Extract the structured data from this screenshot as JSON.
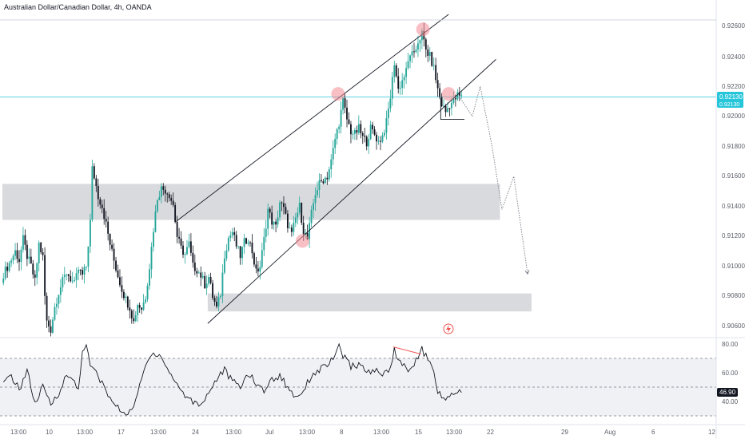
{
  "header": {
    "title": "Australian Dollar/Canadian Dollar, 4h, OANDA"
  },
  "colors": {
    "up": "#26a69a",
    "down": "#131722",
    "price_line": "#26c6da",
    "price_tag": "#26c6da",
    "zone_fill": "#d5d6da",
    "highlight": "#f28b93",
    "rsi_line": "#131722",
    "divergence": "#ef5350",
    "axis_text": "#5d606b"
  },
  "price_axis": {
    "labels": [
      "0.92600",
      "0.92400",
      "0.92200",
      "0.92000",
      "0.91800",
      "0.91600",
      "0.91400",
      "0.91200",
      "0.91000",
      "0.90800",
      "0.90600"
    ],
    "current_price": "0.92130",
    "current_price_sub": "0.92130"
  },
  "rsi_axis": {
    "labels": [
      "80.00",
      "60.00",
      "40.00"
    ],
    "current_value": "46.90"
  },
  "time_axis": {
    "labels": [
      "13:00",
      "10",
      "13:00",
      "17",
      "13:00",
      "24",
      "13:00",
      "Jul",
      "13:00",
      "8",
      "13:00",
      "15",
      "13:00",
      "22",
      "29",
      "Aug",
      "6",
      "12"
    ]
  },
  "icons": {
    "flash": "lightning-icon"
  },
  "chart_data": [
    {
      "type": "candlestick",
      "title": "Australian Dollar/Canadian Dollar, 4h, OANDA",
      "ylim": [
        0.905,
        0.927
      ],
      "y_ticks": [
        0.926,
        0.924,
        0.922,
        0.92,
        0.918,
        0.916,
        0.914,
        0.912,
        0.91,
        0.908,
        0.906
      ],
      "anchors": [
        [
          0,
          0.9095
        ],
        [
          3,
          0.9102
        ],
        [
          6,
          0.911
        ],
        [
          8,
          0.9104
        ],
        [
          10,
          0.9118
        ],
        [
          12,
          0.9107
        ],
        [
          14,
          0.91
        ],
        [
          16,
          0.909
        ],
        [
          18,
          0.9115
        ],
        [
          20,
          0.9106
        ],
        [
          21,
          0.908
        ],
        [
          22,
          0.9063
        ],
        [
          24,
          0.9058
        ],
        [
          26,
          0.9073
        ],
        [
          28,
          0.9083
        ],
        [
          30,
          0.909
        ],
        [
          32,
          0.9096
        ],
        [
          34,
          0.9092
        ],
        [
          36,
          0.9088
        ],
        [
          38,
          0.9098
        ],
        [
          40,
          0.9094
        ],
        [
          42,
          0.91
        ],
        [
          44,
          0.913
        ],
        [
          45,
          0.9165
        ],
        [
          46,
          0.916
        ],
        [
          48,
          0.9147
        ],
        [
          50,
          0.914
        ],
        [
          52,
          0.9128
        ],
        [
          54,
          0.9115
        ],
        [
          56,
          0.9104
        ],
        [
          58,
          0.9094
        ],
        [
          60,
          0.9085
        ],
        [
          62,
          0.9078
        ],
        [
          64,
          0.9073
        ],
        [
          66,
          0.9063
        ],
        [
          68,
          0.9075
        ],
        [
          70,
          0.9072
        ],
        [
          72,
          0.908
        ],
        [
          74,
          0.91
        ],
        [
          76,
          0.9125
        ],
        [
          78,
          0.9146
        ],
        [
          80,
          0.9152
        ],
        [
          82,
          0.9151
        ],
        [
          84,
          0.9148
        ],
        [
          86,
          0.9141
        ],
        [
          88,
          0.912
        ],
        [
          90,
          0.9112
        ],
        [
          92,
          0.9108
        ],
        [
          94,
          0.9115
        ],
        [
          96,
          0.91
        ],
        [
          98,
          0.9098
        ],
        [
          100,
          0.9094
        ],
        [
          102,
          0.9088
        ],
        [
          104,
          0.9093
        ],
        [
          106,
          0.908
        ],
        [
          108,
          0.9072
        ],
        [
          110,
          0.9082
        ],
        [
          112,
          0.9108
        ],
        [
          114,
          0.9119
        ],
        [
          116,
          0.9123
        ],
        [
          118,
          0.9114
        ],
        [
          120,
          0.9107
        ],
        [
          122,
          0.9116
        ],
        [
          124,
          0.9119
        ],
        [
          126,
          0.911
        ],
        [
          128,
          0.9096
        ],
        [
          130,
          0.91
        ],
        [
          132,
          0.9118
        ],
        [
          134,
          0.9138
        ],
        [
          136,
          0.913
        ],
        [
          138,
          0.9126
        ],
        [
          140,
          0.9143
        ],
        [
          142,
          0.9138
        ],
        [
          144,
          0.9128
        ],
        [
          146,
          0.9121
        ],
        [
          148,
          0.9132
        ],
        [
          150,
          0.914
        ],
        [
          152,
          0.9124
        ],
        [
          154,
          0.9118
        ],
        [
          156,
          0.9135
        ],
        [
          158,
          0.9149
        ],
        [
          160,
          0.9155
        ],
        [
          162,
          0.9158
        ],
        [
          164,
          0.916
        ],
        [
          166,
          0.917
        ],
        [
          168,
          0.9185
        ],
        [
          170,
          0.9196
        ],
        [
          172,
          0.921
        ],
        [
          174,
          0.9198
        ],
        [
          176,
          0.919
        ],
        [
          178,
          0.9188
        ],
        [
          180,
          0.9192
        ],
        [
          182,
          0.9186
        ],
        [
          184,
          0.9183
        ],
        [
          186,
          0.9192
        ],
        [
          188,
          0.9188
        ],
        [
          190,
          0.9183
        ],
        [
          192,
          0.9187
        ],
        [
          194,
          0.9196
        ],
        [
          196,
          0.9213
        ],
        [
          198,
          0.9236
        ],
        [
          200,
          0.9218
        ],
        [
          202,
          0.9224
        ],
        [
          204,
          0.923
        ],
        [
          206,
          0.9242
        ],
        [
          208,
          0.924
        ],
        [
          210,
          0.925
        ],
        [
          212,
          0.9255
        ],
        [
          214,
          0.9244
        ],
        [
          216,
          0.924
        ],
        [
          218,
          0.9232
        ],
        [
          220,
          0.9218
        ],
        [
          222,
          0.9208
        ],
        [
          224,
          0.9203
        ],
        [
          226,
          0.9208
        ],
        [
          228,
          0.921
        ],
        [
          230,
          0.9214
        ],
        [
          232,
          0.9213
        ]
      ],
      "projection_path": [
        [
          232,
          0.9212
        ],
        [
          238,
          0.92
        ],
        [
          242,
          0.922
        ],
        [
          248,
          0.918
        ],
        [
          253,
          0.9138
        ],
        [
          259,
          0.916
        ],
        [
          266,
          0.9095
        ]
      ],
      "support_zones": [
        {
          "from_bar": 0,
          "to_bar": 252,
          "low": 0.9131,
          "high": 0.9155
        },
        {
          "from_bar": 104,
          "to_bar": 268,
          "low": 0.907,
          "high": 0.9082
        }
      ],
      "channel_lower": [
        [
          104,
          0.9062
        ],
        [
          250,
          0.9238
        ]
      ],
      "channel_upper": [
        [
          88,
          0.913
        ],
        [
          226,
          0.9268
        ]
      ],
      "highlighted_points": [
        [
          170,
          0.9215
        ],
        [
          152,
          0.9117
        ],
        [
          213,
          0.9258
        ],
        [
          226,
          0.9215
        ]
      ],
      "current_price": 0.9213
    },
    {
      "type": "line",
      "title": "",
      "ylim": [
        25,
        85
      ],
      "y_ticks": [
        80,
        60,
        40
      ],
      "reference_levels": [
        70,
        50,
        30
      ],
      "anchors": [
        [
          0,
          52
        ],
        [
          4,
          58
        ],
        [
          8,
          48
        ],
        [
          12,
          62
        ],
        [
          16,
          38
        ],
        [
          20,
          50
        ],
        [
          24,
          38
        ],
        [
          28,
          46
        ],
        [
          32,
          58
        ],
        [
          36,
          54
        ],
        [
          38,
          48
        ],
        [
          40,
          76
        ],
        [
          42,
          78
        ],
        [
          44,
          65
        ],
        [
          48,
          58
        ],
        [
          52,
          47
        ],
        [
          56,
          38
        ],
        [
          60,
          33
        ],
        [
          64,
          32
        ],
        [
          68,
          45
        ],
        [
          72,
          65
        ],
        [
          76,
          74
        ],
        [
          80,
          72
        ],
        [
          84,
          60
        ],
        [
          88,
          52
        ],
        [
          92,
          44
        ],
        [
          96,
          40
        ],
        [
          100,
          38
        ],
        [
          104,
          46
        ],
        [
          108,
          56
        ],
        [
          112,
          62
        ],
        [
          116,
          54
        ],
        [
          120,
          50
        ],
        [
          124,
          60
        ],
        [
          128,
          52
        ],
        [
          132,
          48
        ],
        [
          136,
          55
        ],
        [
          140,
          58
        ],
        [
          144,
          50
        ],
        [
          148,
          43
        ],
        [
          152,
          48
        ],
        [
          156,
          58
        ],
        [
          160,
          62
        ],
        [
          164,
          66
        ],
        [
          168,
          70
        ],
        [
          170,
          80
        ],
        [
          172,
          72
        ],
        [
          176,
          64
        ],
        [
          180,
          66
        ],
        [
          184,
          60
        ],
        [
          188,
          62
        ],
        [
          192,
          58
        ],
        [
          196,
          64
        ],
        [
          198,
          76
        ],
        [
          200,
          70
        ],
        [
          204,
          62
        ],
        [
          208,
          66
        ],
        [
          212,
          76
        ],
        [
          214,
          72
        ],
        [
          216,
          66
        ],
        [
          218,
          60
        ],
        [
          220,
          48
        ],
        [
          222,
          42
        ],
        [
          224,
          40
        ],
        [
          226,
          45
        ],
        [
          228,
          45
        ],
        [
          232,
          47
        ]
      ],
      "divergence_line": [
        [
          198,
          78
        ],
        [
          212,
          73
        ]
      ],
      "current_value": 46.9
    }
  ]
}
